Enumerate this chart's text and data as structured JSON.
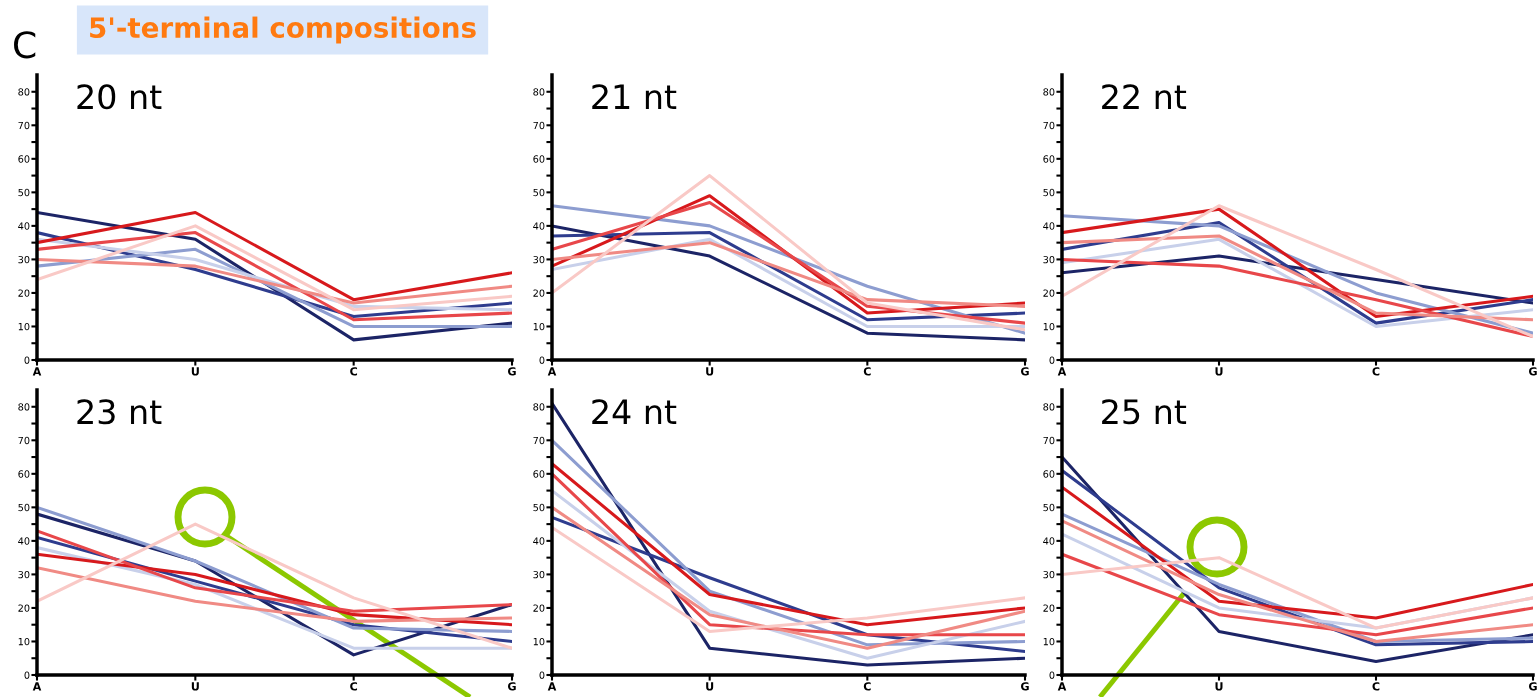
{
  "chart_data": [
    {
      "type": "line",
      "title": "20 nt",
      "annotations": [
        "C",
        "5'-terminal compositions"
      ],
      "categories": [
        "A",
        "U",
        "C",
        "G"
      ],
      "ylim": [
        0,
        85
      ],
      "yticks": [
        0,
        {
          "value": 5,
          "label": null
        },
        10,
        {
          "value": 15,
          "label": null
        },
        20,
        {
          "value": 25,
          "label": null
        },
        30,
        {
          "value": 35,
          "label": null
        },
        40,
        {
          "value": 45,
          "label": null
        },
        50,
        {
          "value": 55,
          "label": null
        },
        60,
        {
          "value": 65,
          "label": null
        },
        70,
        {
          "value": 75,
          "label": null
        },
        80
      ],
      "grid": false,
      "legend": false,
      "marker": "none",
      "line_style": "solid",
      "series": [
        {
          "color": "#1c2466",
          "values": [
            44,
            36,
            6,
            11
          ]
        },
        {
          "color": "#2e3c8e",
          "values": [
            38,
            27,
            13,
            17
          ]
        },
        {
          "color": "#8d9dd0",
          "values": [
            28,
            33,
            10,
            10
          ]
        },
        {
          "color": "#c8d0ea",
          "values": [
            36,
            30,
            16,
            15
          ]
        },
        {
          "color": "#d7191c",
          "values": [
            35,
            44,
            18,
            26
          ]
        },
        {
          "color": "#e8474a",
          "values": [
            33,
            38,
            12,
            14
          ]
        },
        {
          "color": "#f08a84",
          "values": [
            30,
            28,
            17,
            22
          ]
        },
        {
          "color": "#f9c9c6",
          "values": [
            24,
            40,
            15,
            19
          ]
        }
      ]
    },
    {
      "type": "line",
      "title": "21 nt",
      "categories": [
        "A",
        "U",
        "C",
        "G"
      ],
      "ylim": [
        0,
        85
      ],
      "yticks": [
        0,
        {
          "value": 5,
          "label": null
        },
        10,
        {
          "value": 15,
          "label": null
        },
        20,
        {
          "value": 25,
          "label": null
        },
        30,
        {
          "value": 35,
          "label": null
        },
        40,
        {
          "value": 45,
          "label": null
        },
        50,
        {
          "value": 55,
          "label": null
        },
        60,
        {
          "value": 65,
          "label": null
        },
        70,
        {
          "value": 75,
          "label": null
        },
        80
      ],
      "grid": false,
      "legend": false,
      "marker": "none",
      "line_style": "solid",
      "series": [
        {
          "color": "#1c2466",
          "values": [
            40,
            31,
            8,
            6
          ]
        },
        {
          "color": "#2e3c8e",
          "values": [
            37,
            38,
            12,
            14
          ]
        },
        {
          "color": "#8d9dd0",
          "values": [
            46,
            40,
            22,
            8
          ]
        },
        {
          "color": "#c8d0ea",
          "values": [
            27,
            36,
            10,
            10
          ]
        },
        {
          "color": "#d7191c",
          "values": [
            28,
            49,
            14,
            17
          ]
        },
        {
          "color": "#e8474a",
          "values": [
            33,
            47,
            16,
            11
          ]
        },
        {
          "color": "#f08a84",
          "values": [
            30,
            35,
            18,
            16
          ]
        },
        {
          "color": "#f9c9c6",
          "values": [
            20,
            55,
            17,
            9
          ]
        }
      ]
    },
    {
      "type": "line",
      "title": "22 nt",
      "categories": [
        "A",
        "U",
        "C",
        "G"
      ],
      "ylim": [
        0,
        85
      ],
      "yticks": [
        0,
        {
          "value": 5,
          "label": null
        },
        10,
        {
          "value": 15,
          "label": null
        },
        20,
        {
          "value": 25,
          "label": null
        },
        30,
        {
          "value": 35,
          "label": null
        },
        40,
        {
          "value": 45,
          "label": null
        },
        50,
        {
          "value": 55,
          "label": null
        },
        60,
        {
          "value": 65,
          "label": null
        },
        70,
        {
          "value": 75,
          "label": null
        },
        80
      ],
      "grid": false,
      "legend": false,
      "marker": "none",
      "line_style": "solid",
      "series": [
        {
          "color": "#1c2466",
          "values": [
            26,
            31,
            24,
            17
          ]
        },
        {
          "color": "#2e3c8e",
          "values": [
            33,
            41,
            11,
            18
          ]
        },
        {
          "color": "#8d9dd0",
          "values": [
            43,
            40,
            20,
            8
          ]
        },
        {
          "color": "#c8d0ea",
          "values": [
            29,
            36,
            10,
            15
          ]
        },
        {
          "color": "#d7191c",
          "values": [
            38,
            45,
            13,
            19
          ]
        },
        {
          "color": "#e8474a",
          "values": [
            30,
            28,
            18,
            7
          ]
        },
        {
          "color": "#f08a84",
          "values": [
            35,
            37,
            14,
            12
          ]
        },
        {
          "color": "#f9c9c6",
          "values": [
            19,
            46,
            27,
            7
          ]
        }
      ]
    },
    {
      "type": "line",
      "title": "23 nt",
      "categories": [
        "A",
        "U",
        "C",
        "G"
      ],
      "ylim": [
        0,
        85
      ],
      "yticks": [
        0,
        {
          "value": 5,
          "label": null
        },
        10,
        {
          "value": 15,
          "label": null
        },
        20,
        {
          "value": 25,
          "label": null
        },
        30,
        {
          "value": 35,
          "label": null
        },
        40,
        {
          "value": 45,
          "label": null
        },
        50,
        {
          "value": 55,
          "label": null
        },
        60,
        {
          "value": 65,
          "label": null
        },
        70,
        {
          "value": 75,
          "label": null
        },
        80
      ],
      "grid": false,
      "legend": false,
      "marker": "none",
      "line_style": "solid",
      "series": [
        {
          "color": "#1c2466",
          "values": [
            48,
            34,
            6,
            21
          ]
        },
        {
          "color": "#2e3c8e",
          "values": [
            41,
            28,
            15,
            10
          ]
        },
        {
          "color": "#8d9dd0",
          "values": [
            50,
            34,
            14,
            13
          ]
        },
        {
          "color": "#c8d0ea",
          "values": [
            38,
            27,
            8,
            8
          ]
        },
        {
          "color": "#d7191c",
          "values": [
            36,
            30,
            18,
            15
          ]
        },
        {
          "color": "#e8474a",
          "values": [
            43,
            26,
            19,
            21
          ]
        },
        {
          "color": "#f08a84",
          "values": [
            32,
            22,
            16,
            17
          ]
        },
        {
          "color": "#f9c9c6",
          "values": [
            22,
            45,
            23,
            8
          ]
        }
      ]
    },
    {
      "type": "line",
      "title": "24 nt",
      "categories": [
        "A",
        "U",
        "C",
        "G"
      ],
      "ylim": [
        0,
        85
      ],
      "yticks": [
        0,
        {
          "value": 5,
          "label": null
        },
        10,
        {
          "value": 15,
          "label": null
        },
        20,
        {
          "value": 25,
          "label": null
        },
        30,
        {
          "value": 35,
          "label": null
        },
        40,
        {
          "value": 45,
          "label": null
        },
        50,
        {
          "value": 55,
          "label": null
        },
        60,
        {
          "value": 65,
          "label": null
        },
        70,
        {
          "value": 75,
          "label": null
        },
        80
      ],
      "grid": false,
      "legend": false,
      "marker": "none",
      "line_style": "solid",
      "series": [
        {
          "color": "#1c2466",
          "values": [
            81,
            8,
            3,
            5
          ]
        },
        {
          "color": "#2e3c8e",
          "values": [
            47,
            29,
            12,
            7
          ]
        },
        {
          "color": "#8d9dd0",
          "values": [
            70,
            25,
            9,
            10
          ]
        },
        {
          "color": "#c8d0ea",
          "values": [
            55,
            19,
            5,
            16
          ]
        },
        {
          "color": "#d7191c",
          "values": [
            63,
            24,
            15,
            20
          ]
        },
        {
          "color": "#e8474a",
          "values": [
            60,
            15,
            12,
            12
          ]
        },
        {
          "color": "#f08a84",
          "values": [
            50,
            18,
            8,
            19
          ]
        },
        {
          "color": "#f9c9c6",
          "values": [
            44,
            13,
            17,
            23
          ]
        }
      ]
    },
    {
      "type": "line",
      "title": "25 nt",
      "categories": [
        "A",
        "U",
        "C",
        "G"
      ],
      "ylim": [
        0,
        85
      ],
      "yticks": [
        0,
        {
          "value": 5,
          "label": null
        },
        10,
        {
          "value": 15,
          "label": null
        },
        20,
        {
          "value": 25,
          "label": null
        },
        30,
        {
          "value": 35,
          "label": null
        },
        40,
        {
          "value": 45,
          "label": null
        },
        50,
        {
          "value": 55,
          "label": null
        },
        60,
        {
          "value": 65,
          "label": null
        },
        70,
        {
          "value": 75,
          "label": null
        },
        80
      ],
      "grid": false,
      "legend": false,
      "marker": "none",
      "line_style": "solid",
      "series": [
        {
          "color": "#1c2466",
          "values": [
            65,
            13,
            4,
            12
          ]
        },
        {
          "color": "#2e3c8e",
          "values": [
            61,
            26,
            9,
            10
          ]
        },
        {
          "color": "#8d9dd0",
          "values": [
            48,
            27,
            10,
            11
          ]
        },
        {
          "color": "#c8d0ea",
          "values": [
            42,
            20,
            14,
            23
          ]
        },
        {
          "color": "#d7191c",
          "values": [
            56,
            22,
            17,
            27
          ]
        },
        {
          "color": "#e8474a",
          "values": [
            36,
            18,
            12,
            20
          ]
        },
        {
          "color": "#f08a84",
          "values": [
            46,
            24,
            10,
            15
          ]
        },
        {
          "color": "#f9c9c6",
          "values": [
            30,
            35,
            14,
            23
          ]
        }
      ]
    }
  ]
}
